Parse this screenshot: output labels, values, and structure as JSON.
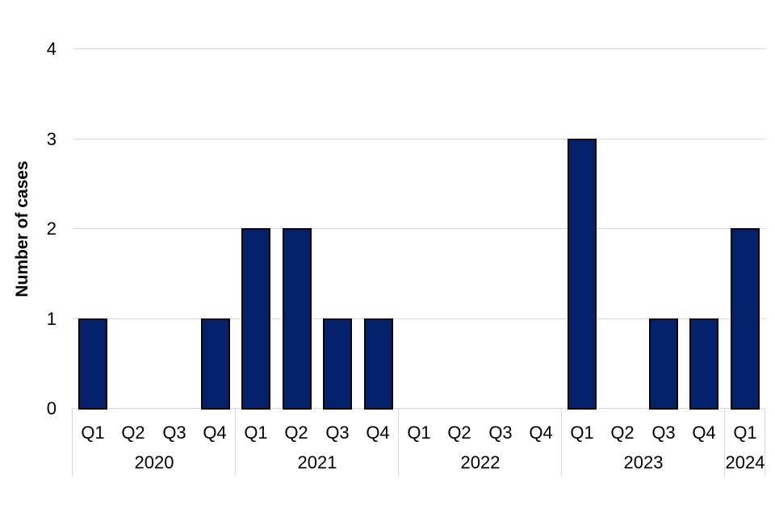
{
  "chart_data": {
    "type": "bar",
    "title": "",
    "ylabel": "Number of cases",
    "xlabel": "",
    "ylim": [
      0,
      4
    ],
    "yticks": [
      0,
      1,
      2,
      3,
      4
    ],
    "grid": true,
    "legend": false,
    "categories": [
      "2020 Q1",
      "2020 Q2",
      "2020 Q3",
      "2020 Q4",
      "2021 Q1",
      "2021 Q2",
      "2021 Q3",
      "2021 Q4",
      "2022 Q1",
      "2022 Q2",
      "2022 Q3",
      "2022 Q4",
      "2023 Q1",
      "2023 Q2",
      "2023 Q3",
      "2023 Q4",
      "2024 Q1"
    ],
    "values": [
      1,
      0,
      0,
      1,
      2,
      2,
      1,
      1,
      0,
      0,
      0,
      0,
      3,
      0,
      1,
      1,
      2
    ],
    "groups": [
      {
        "year": "2020",
        "quarters": [
          "Q1",
          "Q2",
          "Q3",
          "Q4"
        ],
        "values": [
          1,
          0,
          0,
          1
        ]
      },
      {
        "year": "2021",
        "quarters": [
          "Q1",
          "Q2",
          "Q3",
          "Q4"
        ],
        "values": [
          2,
          2,
          1,
          1
        ]
      },
      {
        "year": "2022",
        "quarters": [
          "Q1",
          "Q2",
          "Q3",
          "Q4"
        ],
        "values": [
          0,
          0,
          0,
          0
        ]
      },
      {
        "year": "2023",
        "quarters": [
          "Q1",
          "Q2",
          "Q3",
          "Q4"
        ],
        "values": [
          3,
          0,
          1,
          1
        ]
      },
      {
        "year": "2024",
        "quarters": [
          "Q1"
        ],
        "values": [
          2
        ]
      }
    ],
    "colors": {
      "bar_fill": "#04226B",
      "bar_border": "#000000",
      "gridline": "#D9D9D9",
      "text": "#000000",
      "background": "#FFFFFF"
    }
  }
}
